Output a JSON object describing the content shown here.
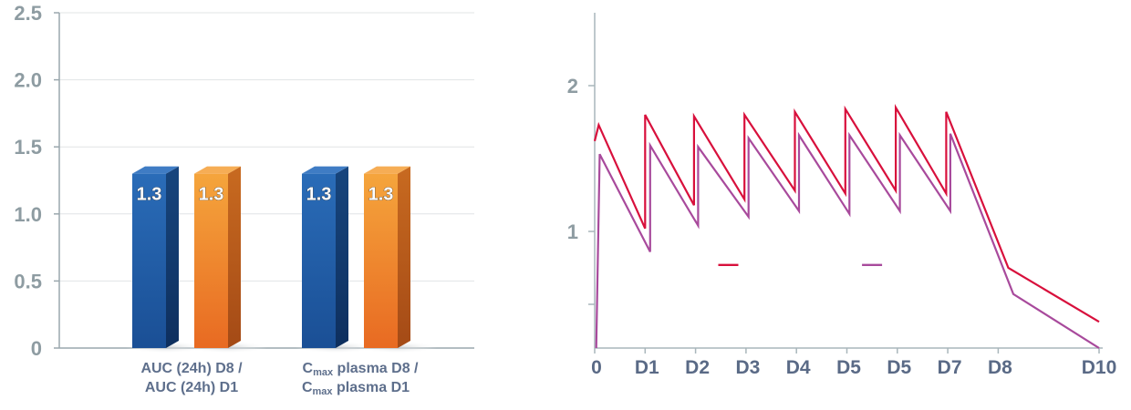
{
  "chart_data": [
    {
      "type": "bar",
      "ylim": [
        0,
        2.5
      ],
      "yticks": [
        "0",
        "0.5",
        "1.0",
        "1.5",
        "2.0",
        "2.5"
      ],
      "grid": true,
      "categories": [
        {
          "line1": "AUC (24h) D8 /",
          "line2": "AUC (24h) D1"
        },
        {
          "line1_sub": "max",
          "line1_rest": " plasma D8 /",
          "line2_sub": "max",
          "line2_rest": " plasma D1",
          "prefix": "C"
        }
      ],
      "series": [
        {
          "color": "#1f5fa8",
          "values": [
            1.3,
            1.3
          ],
          "labels": [
            "1.3",
            "1.3"
          ]
        },
        {
          "color": "#f08a24",
          "values": [
            1.3,
            1.3
          ],
          "labels": [
            "1.3",
            "1.3"
          ]
        }
      ],
      "colors": {
        "blue_front": "#1f5fa8",
        "blue_side": "#123a6e",
        "blue_top": "#3f7cc4",
        "orange_front": "#f08a24",
        "orange_side": "#b9541a",
        "orange_top": "#f6ad55"
      }
    },
    {
      "type": "line",
      "ylim": [
        0.2,
        2.5
      ],
      "yticks": [
        {
          "value": 1,
          "label": "1"
        },
        {
          "value": 2,
          "label": "2"
        }
      ],
      "minor_ticks": [
        0.5
      ],
      "x_labels": [
        {
          "x": 0,
          "label": "0"
        },
        {
          "x": 1,
          "label": "D1"
        },
        {
          "x": 2,
          "label": "D2"
        },
        {
          "x": 3,
          "label": "D3"
        },
        {
          "x": 4,
          "label": "D4"
        },
        {
          "x": 5,
          "label": "D5"
        },
        {
          "x": 6,
          "label": "D5"
        },
        {
          "x": 7,
          "label": "D7"
        },
        {
          "x": 8,
          "label": "D8"
        },
        {
          "x": 10,
          "label": "D10"
        }
      ],
      "xlim": [
        0,
        10
      ],
      "series": [
        {
          "color": "#d8103c",
          "points": [
            [
              0,
              1.62
            ],
            [
              0.08,
              1.73
            ],
            [
              1.0,
              1.02
            ],
            [
              1.0,
              1.8
            ],
            [
              1.97,
              1.18
            ],
            [
              1.97,
              1.79
            ],
            [
              2.97,
              1.22
            ],
            [
              2.97,
              1.8
            ],
            [
              3.97,
              1.28
            ],
            [
              3.97,
              1.82
            ],
            [
              4.97,
              1.26
            ],
            [
              4.97,
              1.84
            ],
            [
              5.97,
              1.28
            ],
            [
              5.97,
              1.85
            ],
            [
              6.97,
              1.26
            ],
            [
              6.97,
              1.82
            ],
            [
              8.2,
              0.75
            ],
            [
              10,
              0.38
            ]
          ]
        },
        {
          "color": "#a84a9c",
          "points": [
            [
              0.03,
              0.2
            ],
            [
              0.1,
              1.53
            ],
            [
              1.1,
              0.86
            ],
            [
              1.1,
              1.59
            ],
            [
              2.05,
              1.04
            ],
            [
              2.05,
              1.58
            ],
            [
              3.05,
              1.1
            ],
            [
              3.05,
              1.64
            ],
            [
              4.05,
              1.14
            ],
            [
              4.05,
              1.66
            ],
            [
              5.05,
              1.12
            ],
            [
              5.05,
              1.66
            ],
            [
              6.05,
              1.14
            ],
            [
              6.05,
              1.66
            ],
            [
              7.05,
              1.14
            ],
            [
              7.05,
              1.67
            ],
            [
              8.3,
              0.57
            ],
            [
              10,
              0.2
            ]
          ]
        }
      ],
      "legend": [
        {
          "color": "#d8103c",
          "x": 2.45,
          "y": 0.77
        },
        {
          "color": "#a84a9c",
          "x": 5.3,
          "y": 0.77
        }
      ]
    }
  ]
}
